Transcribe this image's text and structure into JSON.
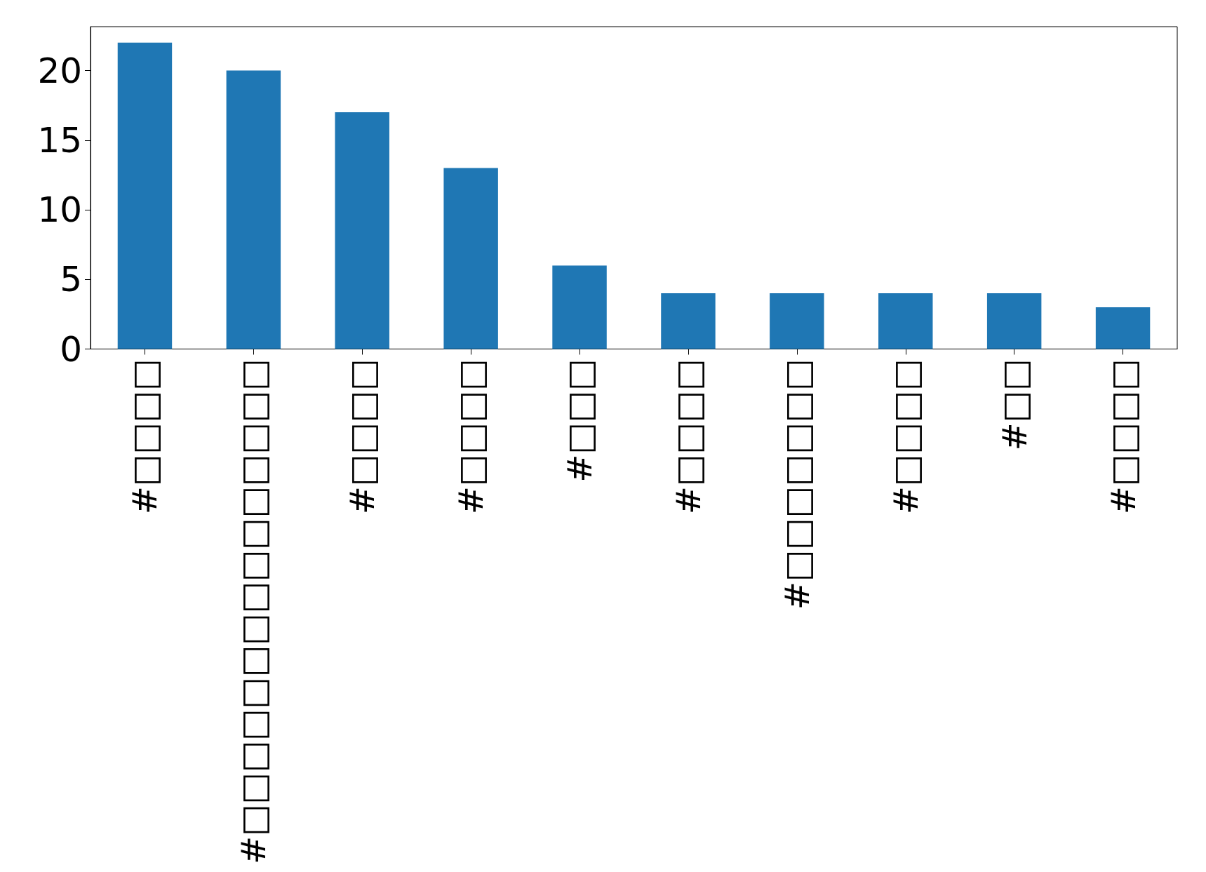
{
  "chart_data": {
    "type": "bar",
    "categories": [
      "#□□□□",
      "#□□□□□□□□□□□□□□□",
      "#□□□□",
      "#□□□□",
      "#□□□",
      "#□□□□",
      "#□□□□□□□",
      "#□□□□",
      "#□□",
      "#□□□□"
    ],
    "values": [
      22,
      20,
      17,
      13,
      6,
      4,
      4,
      4,
      4,
      3
    ],
    "color": "#1f77b4",
    "ylim": [
      0,
      23.15
    ],
    "yticks": [
      0,
      5,
      10,
      15,
      20
    ],
    "grid": false
  }
}
